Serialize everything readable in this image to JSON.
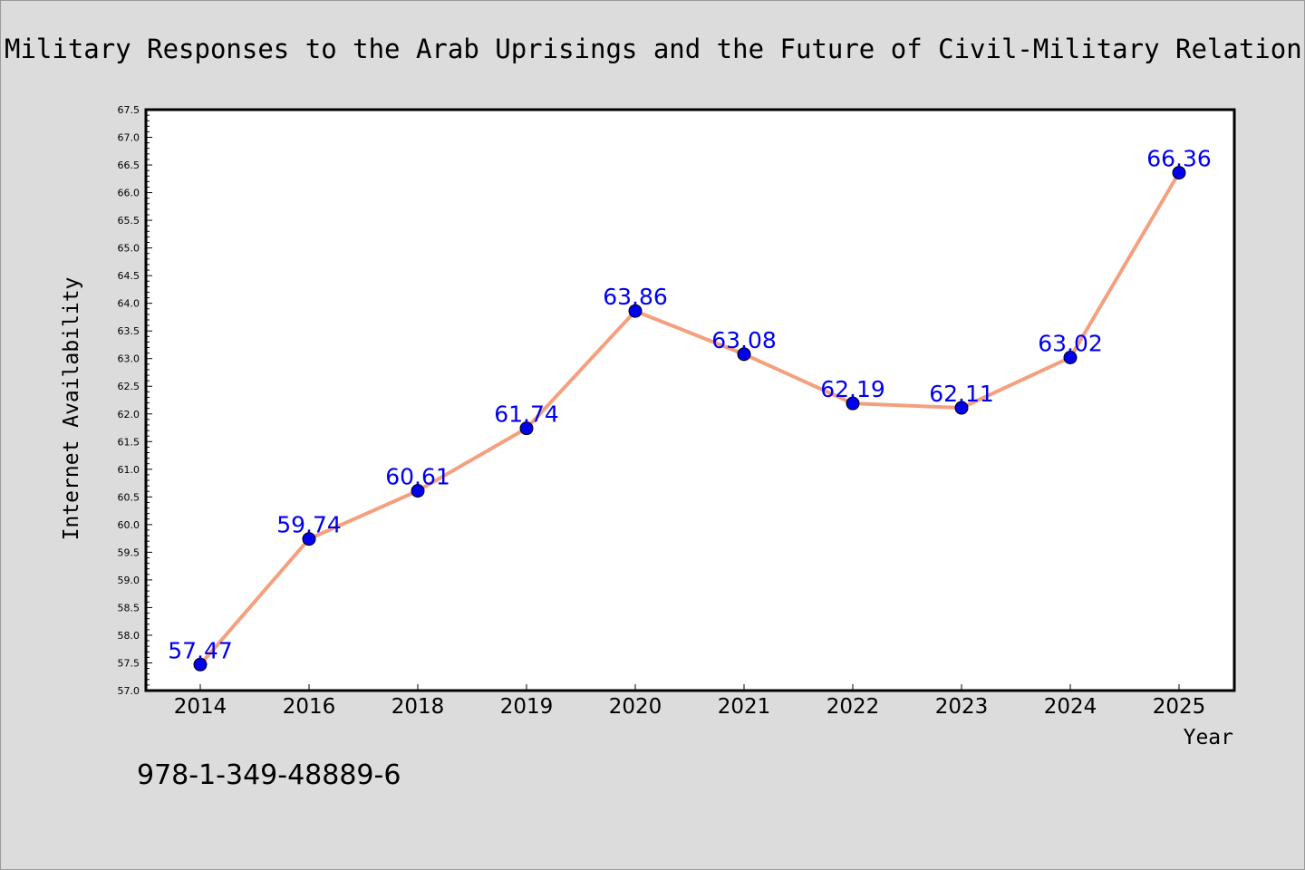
{
  "chart_data": {
    "type": "line",
    "title": "Military Responses to the Arab Uprisings and the Future of Civil-Military Relations",
    "xlabel": "Year",
    "ylabel": "Internet Availability",
    "categories": [
      "2014",
      "2016",
      "2018",
      "2019",
      "2020",
      "2021",
      "2022",
      "2023",
      "2024",
      "2025"
    ],
    "series": [
      {
        "values": [
          57.47,
          59.74,
          60.61,
          61.74,
          63.86,
          63.08,
          62.19,
          62.11,
          63.02,
          66.36
        ]
      }
    ],
    "data_labels": [
      "57.47",
      "59.74",
      "60.61",
      "61.74",
      "63.86",
      "63.08",
      "62.19",
      "62.11",
      "63.02",
      "66.36"
    ],
    "ylim": [
      57.0,
      67.5
    ],
    "yticks": [
      "57.0",
      "57.5",
      "58.0",
      "58.5",
      "59.0",
      "59.5",
      "60.0",
      "60.5",
      "61.0",
      "61.5",
      "62.0",
      "62.5",
      "63.0",
      "63.5",
      "64.0",
      "64.5",
      "65.0",
      "65.5",
      "66.0",
      "66.5",
      "67.0",
      "67.5"
    ],
    "grid": false,
    "legend": "none",
    "colors": {
      "line": "#f4a07e",
      "marker": "#0000ee",
      "label": "#0000ee",
      "background": "#dcdcdc",
      "plot_area": "#ffffff"
    }
  },
  "footer": {
    "isbn": "978-1-349-48889-6"
  }
}
